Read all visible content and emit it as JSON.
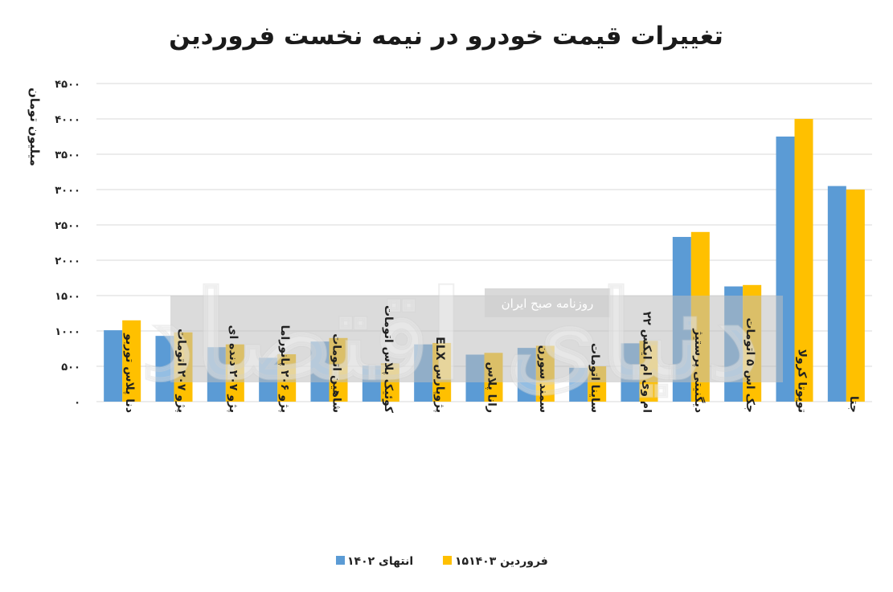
{
  "chart_data": {
    "type": "bar",
    "title": "تغییرات قیمت خودرو در نیمه نخست فروردین",
    "ylabel": "میلیون تومان",
    "ylim": [
      0,
      4500
    ],
    "yticks": [
      0,
      500,
      1000,
      1500,
      2000,
      2500,
      3000,
      3500,
      4000,
      4500
    ],
    "ytick_labels": [
      "۰",
      "۵۰۰",
      "۱۰۰۰",
      "۱۵۰۰",
      "۲۰۰۰",
      "۲۵۰۰",
      "۳۰۰۰",
      "۳۵۰۰",
      "۴۰۰۰",
      "۴۵۰۰"
    ],
    "categories": [
      "دنا پلاس توربو",
      "پژو ۲۰۷ اتومات",
      "پژو ۲۰۷ دنده ای",
      "پژو ۲۰۶ پانوراما",
      "شاهین اتومات",
      "کوئیک پلاس اتومات",
      "پژوپارس ELX",
      "رانا پلاس",
      "سمند سورن",
      "ساینا اتومات",
      "ام وی ام ایکس ۲۲",
      "دیگنیتی پرستیژ",
      "جک اس ۵ اتومات",
      "تویوتا کرولا",
      "جتا"
    ],
    "series": [
      {
        "name": "انتهای ۱۴۰۲",
        "color": "#5b9bd5",
        "values": [
          1010,
          930,
          770,
          620,
          850,
          510,
          810,
          665,
          760,
          480,
          825,
          2330,
          1630,
          3750,
          3050
        ]
      },
      {
        "name": "۱۵فروردین ۱۴۰۳",
        "color": "#ffc000",
        "values": [
          1150,
          980,
          810,
          670,
          900,
          540,
          830,
          690,
          790,
          500,
          860,
          2400,
          1650,
          4000,
          3000
        ]
      }
    ],
    "grid": "horizontal",
    "legend": "bottom-center"
  },
  "watermark": {
    "text": "روزنامه صبح ایران",
    "logo_text": "دنیای اقتصاد"
  }
}
